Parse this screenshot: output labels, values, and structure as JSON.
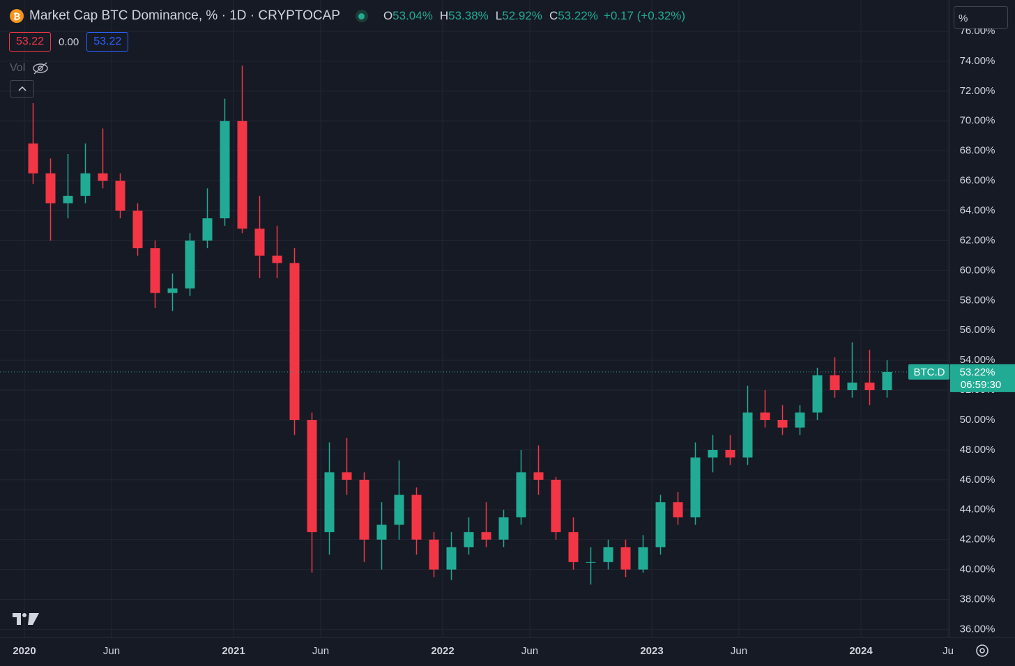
{
  "chart_data": {
    "type": "candlestick",
    "title": "Market Cap BTC Dominance, % · 1D · CRYPTOCAP",
    "ohlc_legend": [
      {
        "key": "O",
        "text": "53.04%"
      },
      {
        "key": "H",
        "text": "53.38%"
      },
      {
        "key": "L",
        "text": "52.92%"
      },
      {
        "key": "C",
        "text": "53.22%"
      }
    ],
    "change_text": "+0.17 (+0.32%)",
    "buttons": [
      "53.22",
      "0.00",
      "53.22"
    ],
    "volume_label": "Vol",
    "scale_mode": "%",
    "symbol": "BTC.D",
    "price_label": {
      "value": 53.22,
      "label": "53.22%"
    },
    "countdown": "06:59:30",
    "x": [
      "2020-01",
      "2020-02",
      "2020-03",
      "2020-04",
      "2020-05",
      "2020-06",
      "2020-07",
      "2020-08",
      "2020-09",
      "2020-10",
      "2020-11",
      "2020-12",
      "2021-01",
      "2021-02",
      "2021-03",
      "2021-04",
      "2021-05",
      "2021-06",
      "2021-07",
      "2021-08",
      "2021-09",
      "2021-10",
      "2021-11",
      "2021-12",
      "2022-01",
      "2022-02",
      "2022-03",
      "2022-04",
      "2022-05",
      "2022-06",
      "2022-07",
      "2022-08",
      "2022-09",
      "2022-10",
      "2022-11",
      "2022-12",
      "2023-01",
      "2023-02",
      "2023-03",
      "2023-04",
      "2023-05",
      "2023-06",
      "2023-07",
      "2023-08",
      "2023-09",
      "2023-10",
      "2023-11",
      "2023-12",
      "2024-01",
      "2024-02"
    ],
    "open": [
      68.5,
      66.5,
      64.5,
      65.0,
      66.5,
      66.0,
      64.0,
      61.5,
      58.5,
      58.8,
      62.0,
      63.5,
      70.0,
      62.8,
      61.0,
      60.5,
      50.0,
      42.5,
      46.5,
      46.0,
      42.0,
      43.0,
      45.0,
      42.0,
      40.0,
      41.5,
      42.5,
      42.0,
      43.5,
      46.5,
      46.0,
      42.5,
      40.5,
      40.5,
      41.5,
      40.0,
      41.5,
      44.5,
      43.5,
      47.5,
      48.0,
      47.5,
      50.5,
      50.0,
      49.5,
      50.5,
      53.0,
      52.0,
      52.5,
      52.0
    ],
    "high": [
      71.2,
      67.5,
      67.8,
      68.5,
      69.5,
      66.5,
      64.5,
      62.0,
      59.8,
      62.5,
      65.5,
      71.5,
      73.7,
      65.0,
      63.0,
      61.5,
      50.5,
      48.5,
      48.8,
      46.5,
      44.5,
      47.3,
      45.5,
      42.5,
      42.5,
      43.5,
      44.5,
      44.0,
      48.0,
      48.3,
      46.2,
      43.5,
      41.5,
      42.0,
      42.0,
      42.3,
      45.0,
      45.2,
      48.5,
      49.0,
      49.0,
      52.3,
      52.0,
      51.0,
      51.0,
      53.5,
      54.2,
      55.2,
      54.7,
      54.0
    ],
    "low": [
      65.8,
      62.0,
      63.5,
      64.5,
      65.5,
      63.5,
      61.0,
      57.5,
      57.3,
      58.3,
      61.5,
      63.0,
      62.5,
      59.5,
      59.5,
      49.0,
      39.8,
      41.0,
      45.0,
      40.5,
      40.0,
      42.0,
      41.0,
      39.5,
      39.3,
      41.0,
      41.5,
      41.5,
      43.0,
      45.0,
      42.0,
      40.0,
      39.0,
      40.0,
      39.5,
      39.8,
      41.0,
      43.0,
      43.0,
      46.5,
      47.0,
      47.0,
      49.5,
      49.0,
      49.0,
      50.0,
      51.5,
      51.5,
      51.0,
      51.5
    ],
    "close": [
      66.5,
      64.5,
      65.0,
      66.5,
      66.0,
      64.0,
      61.5,
      58.5,
      58.8,
      62.0,
      63.5,
      70.0,
      62.8,
      61.0,
      60.5,
      50.0,
      42.5,
      46.5,
      46.0,
      42.0,
      43.0,
      45.0,
      42.0,
      40.0,
      41.5,
      42.5,
      42.0,
      43.5,
      46.5,
      46.0,
      42.5,
      40.5,
      40.5,
      41.5,
      40.0,
      41.5,
      44.5,
      43.5,
      47.5,
      48.0,
      47.5,
      50.5,
      50.0,
      49.5,
      50.5,
      53.0,
      52.0,
      52.5,
      52.0,
      53.22
    ],
    "up_color": "#22ab94",
    "down_color": "#f23645",
    "ylim": [
      35.6,
      76
    ],
    "yticks": [
      {
        "value": 36,
        "label": "36.00%"
      },
      {
        "value": 38,
        "label": "38.00%"
      },
      {
        "value": 40,
        "label": "40.00%"
      },
      {
        "value": 42,
        "label": "42.00%"
      },
      {
        "value": 44,
        "label": "44.00%"
      },
      {
        "value": 46,
        "label": "46.00%"
      },
      {
        "value": 48,
        "label": "48.00%"
      },
      {
        "value": 50,
        "label": "50.00%"
      },
      {
        "value": 52,
        "label": "52.00%"
      },
      {
        "value": 54,
        "label": "54.00%"
      },
      {
        "value": 56,
        "label": "56.00%"
      },
      {
        "value": 58,
        "label": "58.00%"
      },
      {
        "value": 60,
        "label": "60.00%"
      },
      {
        "value": 62,
        "label": "62.00%"
      },
      {
        "value": 64,
        "label": "64.00%"
      },
      {
        "value": 66,
        "label": "66.00%"
      },
      {
        "value": 68,
        "label": "68.00%"
      },
      {
        "value": 70,
        "label": "70.00%"
      },
      {
        "value": 72,
        "label": "72.00%"
      },
      {
        "value": 74,
        "label": "74.00%"
      },
      {
        "value": 76,
        "label": "76.00%"
      }
    ],
    "xticks": [
      {
        "value": "2020-01",
        "label": "2020"
      },
      {
        "value": "2020-06",
        "label": "Jun"
      },
      {
        "value": "2021-01",
        "label": "2021"
      },
      {
        "value": "2021-06",
        "label": "Jun"
      },
      {
        "value": "2022-01",
        "label": "2022"
      },
      {
        "value": "2022-06",
        "label": "Jun"
      },
      {
        "value": "2023-01",
        "label": "2023"
      },
      {
        "value": "2023-06",
        "label": "Jun"
      },
      {
        "value": "2024-01",
        "label": "2024"
      },
      {
        "value": "2024-06",
        "label": "Ju"
      }
    ],
    "grid": true
  }
}
